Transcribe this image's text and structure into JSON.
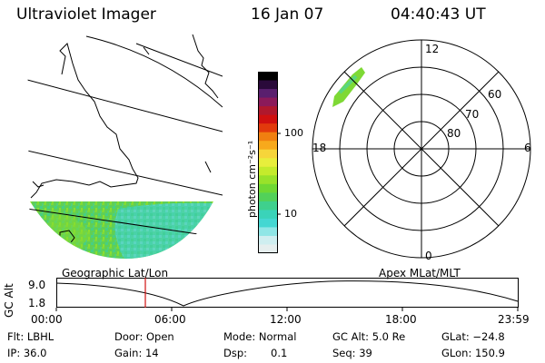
{
  "header": {
    "title": "Ultraviolet Imager",
    "date": "16 Jan 07",
    "time": "04:40:43 UT"
  },
  "colorbar": {
    "unit_label": "photon cm⁻²s⁻¹",
    "ticks": [
      "100",
      "10"
    ],
    "colors": [
      "#000000",
      "#2a0a3a",
      "#5a1f6e",
      "#8b1a5a",
      "#b0182d",
      "#d01010",
      "#e23a0c",
      "#f07f10",
      "#f7a91c",
      "#f6d53a",
      "#e8ee3c",
      "#c4eb2c",
      "#98e22a",
      "#6fd833",
      "#52d159",
      "#3fd08d",
      "#3ad3b9",
      "#44d7d2",
      "#8fe6e6",
      "#cfeef0",
      "#e6eeee"
    ]
  },
  "map": {
    "caption": "Geographic Lat/Lon",
    "aurora_colors": [
      "#7ed935",
      "#5cd04a",
      "#46d07a",
      "#42d4b0"
    ]
  },
  "polar": {
    "caption": "Apex MLat/MLT",
    "mlt_labels": {
      "top": "12",
      "left": "18",
      "right": "6",
      "bottom": "0"
    },
    "lat_labels": [
      "60",
      "70",
      "80"
    ]
  },
  "timeline": {
    "y_label": "GC Alt",
    "y_ticks": [
      "9.0",
      "1.8"
    ],
    "x_ticks": [
      "00:00",
      "06:00",
      "12:00",
      "18:00",
      "23:59"
    ],
    "marker_color": "#d01010"
  },
  "info": {
    "flt": "Flt: LBHL",
    "ip": "IP: 36.0",
    "door": "Door: Open",
    "gain": "Gain: 14",
    "mode": "Mode: Normal",
    "dsp_label": "Dsp:",
    "dsp_value": "0.1",
    "gcalt": "GC Alt: 5.0 Re",
    "seq": "Seq: 39",
    "glat": "GLat: −24.8",
    "glon": "GLon: 150.9"
  }
}
